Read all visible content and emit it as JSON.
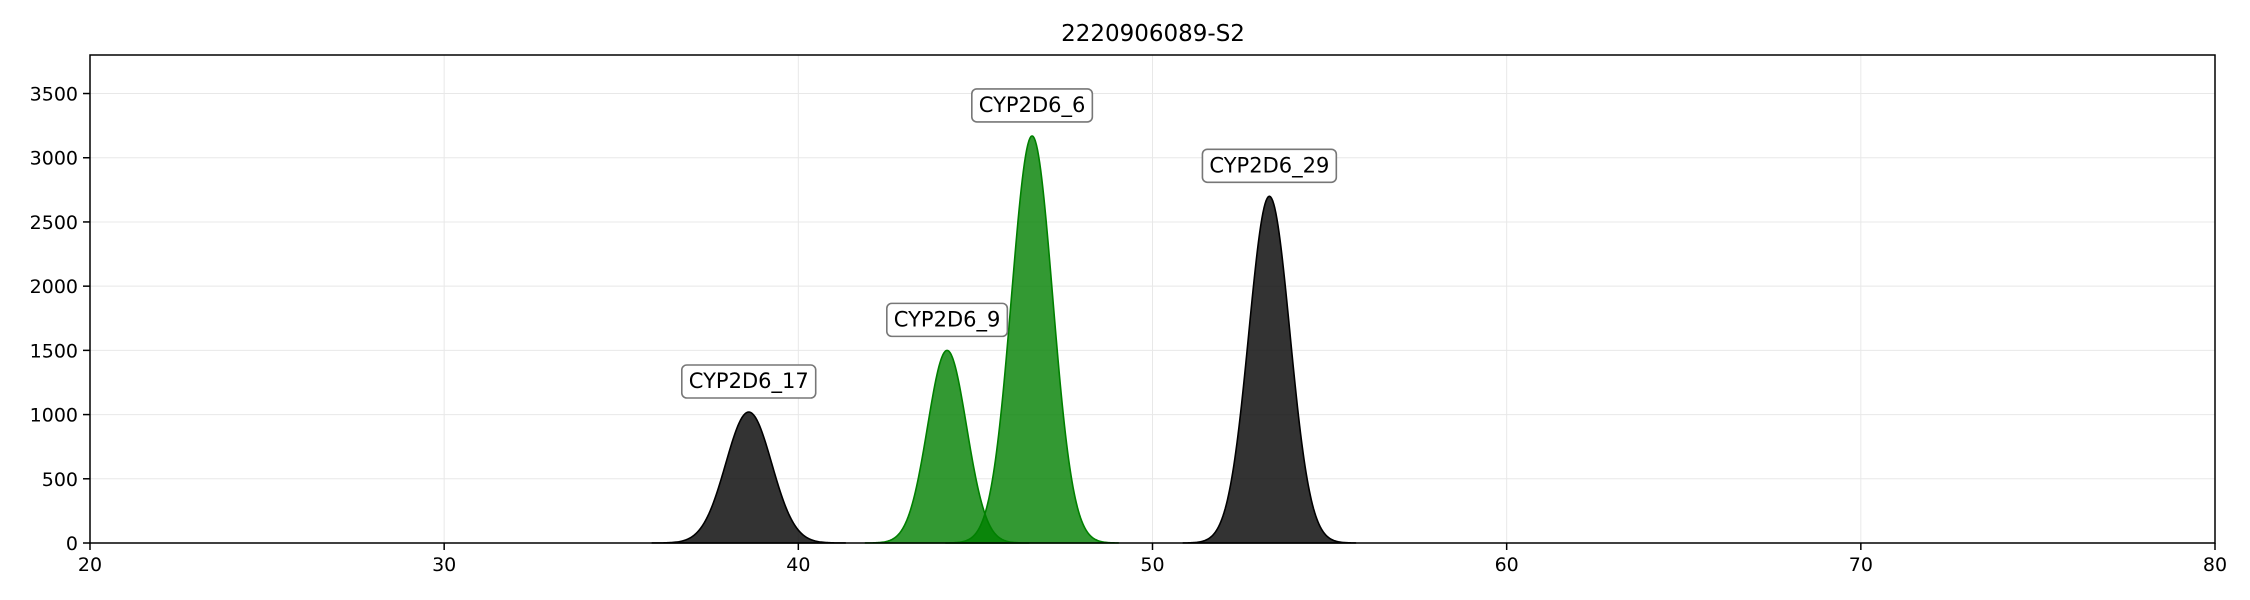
{
  "chart_data": {
    "type": "area",
    "title": "2220906089-S2",
    "xlabel": "",
    "ylabel": "",
    "xlim": [
      20,
      80
    ],
    "ylim": [
      0,
      3800
    ],
    "x_ticks": [
      20,
      30,
      40,
      50,
      60,
      70,
      80
    ],
    "y_ticks": [
      0,
      500,
      1000,
      1500,
      2000,
      2500,
      3000,
      3500
    ],
    "grid": true,
    "series": [
      {
        "name": "CYP2D6_17",
        "center": 38.6,
        "height": 1020,
        "sigma": 0.65,
        "color": "#000000",
        "label": "CYP2D6_17"
      },
      {
        "name": "CYP2D6_9",
        "center": 44.2,
        "height": 1500,
        "sigma": 0.55,
        "color": "#008000",
        "label": "CYP2D6_9"
      },
      {
        "name": "CYP2D6_6",
        "center": 46.6,
        "height": 3170,
        "sigma": 0.58,
        "color": "#008000",
        "label": "CYP2D6_6"
      },
      {
        "name": "CYP2D6_29",
        "center": 53.3,
        "height": 2700,
        "sigma": 0.58,
        "color": "#000000",
        "label": "CYP2D6_29"
      }
    ]
  }
}
